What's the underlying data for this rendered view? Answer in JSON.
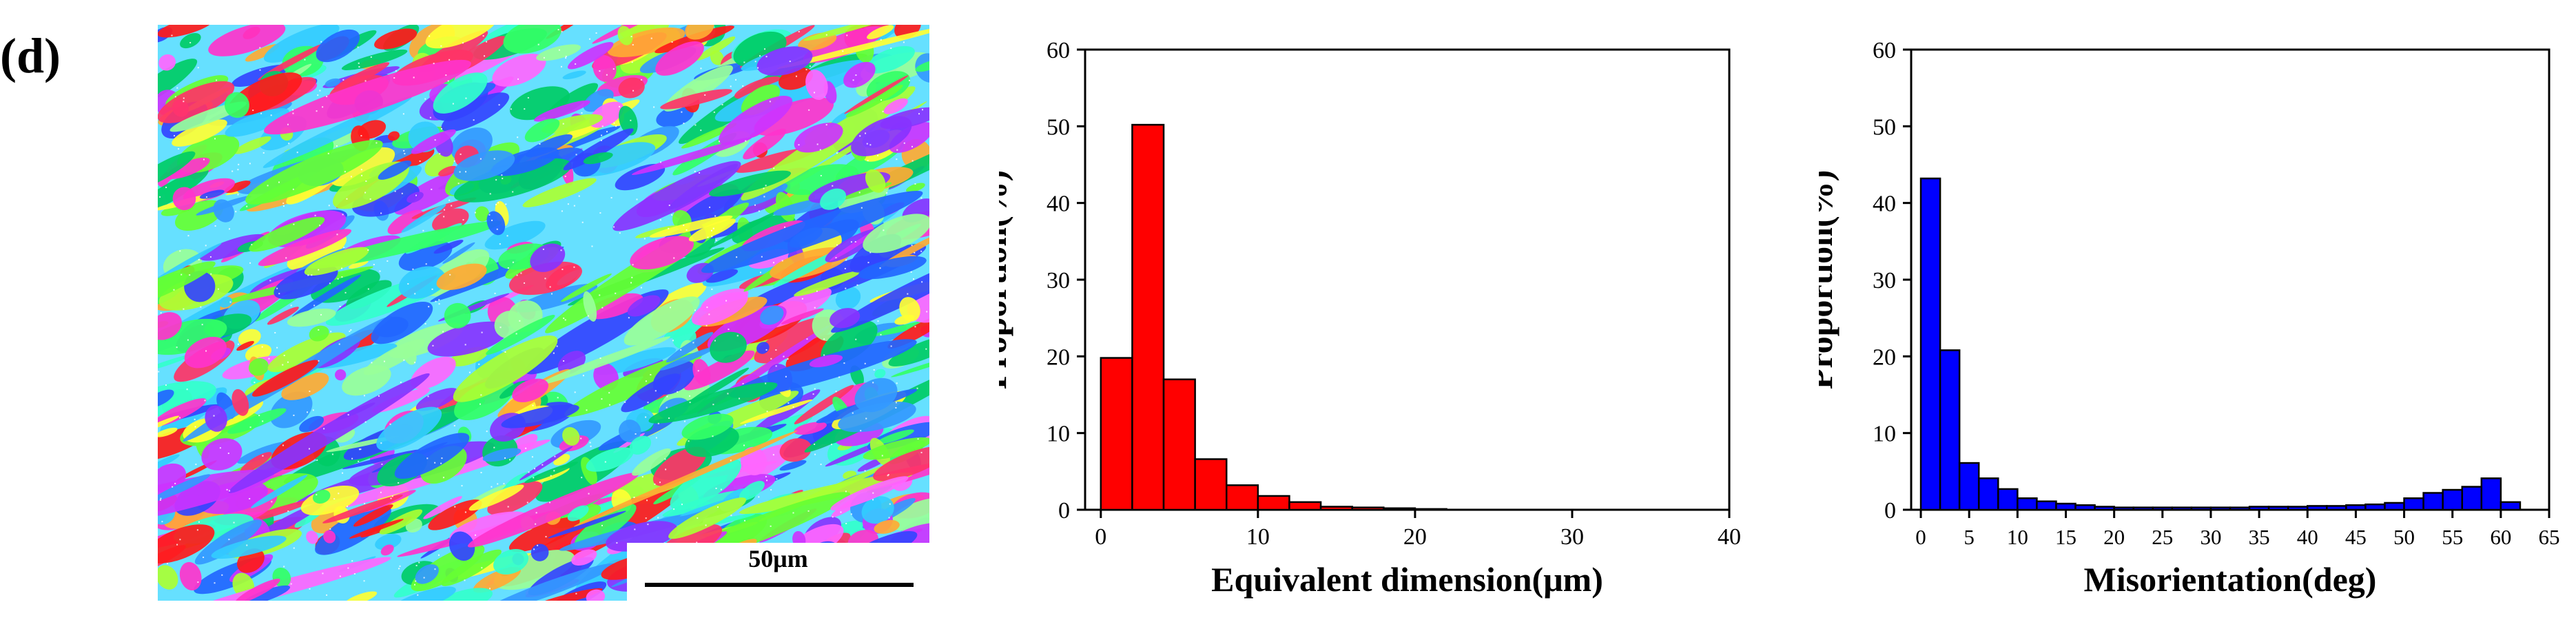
{
  "panel_label": "(d)",
  "ebsd_map": {
    "scale_label": "50μm"
  },
  "chart_data": [
    {
      "type": "bar",
      "title": "",
      "xlabel": "Equivalent dimension(μm)",
      "ylabel": "Proportion(%)",
      "xlim": [
        -1,
        40
      ],
      "ylim": [
        0,
        60
      ],
      "xticks": [
        0,
        10,
        20,
        30,
        40
      ],
      "yticks": [
        0,
        10,
        20,
        30,
        40,
        50,
        60
      ],
      "bin_width": 2,
      "x": [
        1,
        3,
        5,
        7,
        9,
        11,
        13,
        15,
        17,
        19,
        21
      ],
      "values": [
        19.8,
        50.2,
        17.0,
        6.6,
        3.2,
        1.8,
        1.0,
        0.4,
        0.3,
        0.2,
        0.1
      ],
      "bar_color": "#ff0000",
      "grid": false
    },
    {
      "type": "bar",
      "title": "",
      "xlabel": "Misorientation(deg)",
      "ylabel": "Proportion(%)",
      "xlim": [
        -1,
        65
      ],
      "ylim": [
        0,
        60
      ],
      "xticks": [
        0,
        5,
        10,
        15,
        20,
        25,
        30,
        35,
        40,
        45,
        50,
        55,
        60,
        65
      ],
      "yticks": [
        0,
        10,
        20,
        30,
        40,
        50,
        60
      ],
      "bin_width": 2,
      "x": [
        1,
        3,
        5,
        7,
        9,
        11,
        13,
        15,
        17,
        19,
        21,
        23,
        25,
        27,
        29,
        31,
        33,
        35,
        37,
        39,
        41,
        43,
        45,
        47,
        49,
        51,
        53,
        55,
        57,
        59,
        61
      ],
      "values": [
        43.2,
        20.8,
        6.1,
        4.1,
        2.7,
        1.5,
        1.1,
        0.8,
        0.6,
        0.4,
        0.3,
        0.3,
        0.3,
        0.3,
        0.3,
        0.3,
        0.3,
        0.4,
        0.4,
        0.4,
        0.5,
        0.5,
        0.6,
        0.7,
        0.9,
        1.5,
        2.2,
        2.6,
        3.0,
        4.1,
        1.0
      ],
      "bar_color": "#0000ff",
      "grid": false
    }
  ]
}
